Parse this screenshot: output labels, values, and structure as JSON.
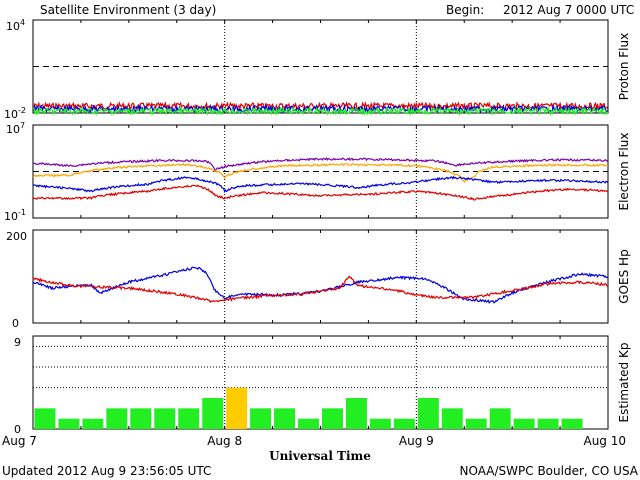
{
  "header": {
    "title": "Satellite Environment (3 day)",
    "begin_label": "Begin:",
    "begin_value": "2012 Aug 7 0000 UTC"
  },
  "footer": {
    "updated": "Updated 2012 Aug  9 23:56:05 UTC",
    "credit": "NOAA/SWPC Boulder, CO USA"
  },
  "x_axis": {
    "label": "Universal Time",
    "ticks": [
      "Aug 7",
      "Aug 8",
      "Aug 9",
      "Aug 10"
    ],
    "range_days": [
      0,
      3
    ]
  },
  "colors": {
    "red": "#e00000",
    "blue": "#0000e0",
    "green": "#22ee22",
    "purple": "#7a00b0",
    "orange": "#ffa500",
    "kp_green": "#22ee22",
    "kp_yellow": "#ffcc00"
  },
  "chart_data": [
    {
      "type": "line",
      "title": "",
      "ylabel": "Proton Flux",
      "y_scale": "log",
      "ylim": [
        0.01,
        10000
      ],
      "y_ticks": [
        {
          "base": "10",
          "exp": "4"
        },
        {
          "base": "10",
          "exp": "-2"
        }
      ],
      "threshold": 10,
      "series": [
        {
          "color": "red",
          "level": 0.028
        },
        {
          "color": "blue",
          "level": 0.018
        },
        {
          "color": "green",
          "level": 0.013
        }
      ]
    },
    {
      "type": "line",
      "title": "",
      "ylabel": "Electron Flux",
      "y_scale": "log",
      "ylim": [
        0.1,
        10000000
      ],
      "y_ticks": [
        {
          "base": "10",
          "exp": "7"
        },
        {
          "base": "10",
          "exp": "-1"
        }
      ],
      "threshold": 1000,
      "series": [
        {
          "color": "purple",
          "points": [
            [
              0,
              5000
            ],
            [
              0.2,
              3000
            ],
            [
              0.4,
              6000
            ],
            [
              0.7,
              9000
            ],
            [
              0.9,
              8000
            ],
            [
              0.95,
              1500
            ],
            [
              1.0,
              2500
            ],
            [
              1.2,
              7000
            ],
            [
              1.5,
              12000
            ],
            [
              1.8,
              11000
            ],
            [
              2.0,
              9000
            ],
            [
              2.1,
              8000
            ],
            [
              2.2,
              3500
            ],
            [
              2.3,
              5000
            ],
            [
              2.6,
              9000
            ],
            [
              2.8,
              10000
            ],
            [
              3.0,
              9000
            ]
          ]
        },
        {
          "color": "orange",
          "points": [
            [
              0,
              400
            ],
            [
              0.2,
              500
            ],
            [
              0.5,
              2500
            ],
            [
              0.8,
              4000
            ],
            [
              0.95,
              1200
            ],
            [
              1.0,
              300
            ],
            [
              1.05,
              800
            ],
            [
              1.3,
              3000
            ],
            [
              1.6,
              4000
            ],
            [
              1.9,
              3500
            ],
            [
              2.0,
              3000
            ],
            [
              2.1,
              1800
            ],
            [
              2.2,
              600
            ],
            [
              2.25,
              150
            ],
            [
              2.3,
              300
            ],
            [
              2.4,
              2500
            ],
            [
              2.7,
              3500
            ],
            [
              3.0,
              3500
            ]
          ]
        },
        {
          "color": "blue",
          "points": [
            [
              0,
              60
            ],
            [
              0.3,
              20
            ],
            [
              0.6,
              80
            ],
            [
              0.8,
              300
            ],
            [
              0.95,
              100
            ],
            [
              1.0,
              20
            ],
            [
              1.1,
              60
            ],
            [
              1.4,
              90
            ],
            [
              1.7,
              40
            ],
            [
              2.0,
              120
            ],
            [
              2.2,
              300
            ],
            [
              2.4,
              120
            ],
            [
              2.7,
              180
            ],
            [
              3.0,
              120
            ]
          ]
        },
        {
          "color": "red",
          "points": [
            [
              0,
              5
            ],
            [
              0.3,
              5
            ],
            [
              0.6,
              20
            ],
            [
              0.85,
              60
            ],
            [
              0.95,
              8
            ],
            [
              1.0,
              5
            ],
            [
              1.2,
              15
            ],
            [
              1.5,
              8
            ],
            [
              1.8,
              12
            ],
            [
              2.0,
              20
            ],
            [
              2.2,
              8
            ],
            [
              2.3,
              4
            ],
            [
              2.5,
              10
            ],
            [
              2.8,
              30
            ],
            [
              3.0,
              20
            ]
          ]
        }
      ]
    },
    {
      "type": "line",
      "title": "",
      "ylabel": "GOES Hp",
      "ylim": [
        0,
        200
      ],
      "y_ticks": [
        "200",
        "0"
      ],
      "series": [
        {
          "color": "blue",
          "points": [
            [
              0,
              88
            ],
            [
              0.1,
              75
            ],
            [
              0.3,
              82
            ],
            [
              0.35,
              65
            ],
            [
              0.5,
              88
            ],
            [
              0.7,
              105
            ],
            [
              0.85,
              120
            ],
            [
              0.9,
              110
            ],
            [
              0.95,
              70
            ],
            [
              1.0,
              55
            ],
            [
              1.1,
              62
            ],
            [
              1.3,
              60
            ],
            [
              1.5,
              68
            ],
            [
              1.7,
              88
            ],
            [
              1.9,
              98
            ],
            [
              2.05,
              95
            ],
            [
              2.15,
              75
            ],
            [
              2.25,
              50
            ],
            [
              2.35,
              48
            ],
            [
              2.4,
              45
            ],
            [
              2.5,
              65
            ],
            [
              2.7,
              90
            ],
            [
              2.85,
              105
            ],
            [
              3.0,
              100
            ]
          ]
        },
        {
          "color": "red",
          "points": [
            [
              0,
              95
            ],
            [
              0.2,
              80
            ],
            [
              0.5,
              75
            ],
            [
              0.7,
              65
            ],
            [
              0.85,
              55
            ],
            [
              0.95,
              45
            ],
            [
              1.0,
              50
            ],
            [
              1.2,
              58
            ],
            [
              1.4,
              62
            ],
            [
              1.6,
              75
            ],
            [
              1.65,
              100
            ],
            [
              1.7,
              80
            ],
            [
              1.9,
              70
            ],
            [
              2.0,
              60
            ],
            [
              2.1,
              55
            ],
            [
              2.3,
              55
            ],
            [
              2.5,
              70
            ],
            [
              2.7,
              85
            ],
            [
              2.85,
              88
            ],
            [
              3.0,
              82
            ]
          ]
        }
      ]
    },
    {
      "type": "bar",
      "title": "",
      "ylabel": "Estimated Kp",
      "ylim": [
        0,
        9
      ],
      "y_ticks": [
        "9",
        "0"
      ],
      "gridlines": [
        4,
        6,
        8
      ],
      "bar_width_hours": 3,
      "values": [
        2,
        1,
        1,
        2,
        2,
        2,
        2,
        3,
        4,
        2,
        2,
        1,
        2,
        3,
        1,
        1,
        3,
        2,
        1,
        2,
        1,
        1,
        1,
        0
      ],
      "storm_threshold": 4
    }
  ]
}
